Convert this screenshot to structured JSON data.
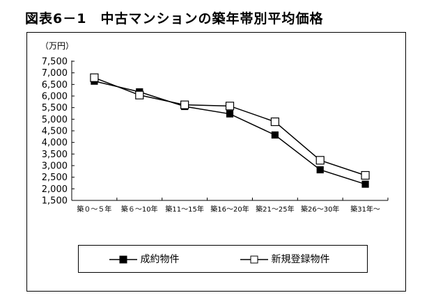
{
  "figure": {
    "title": "図表6－1　中古マンションの築年帯別平均価格"
  },
  "chart_data": {
    "type": "line",
    "unit_label": "（万円）",
    "categories": [
      "築０～５年",
      "築６～10年",
      "築11～15年",
      "築16～20年",
      "築21～25年",
      "築26～30年",
      "築31年～"
    ],
    "y_ticks": [
      "7,500",
      "7,000",
      "6,500",
      "6,000",
      "5,500",
      "5,000",
      "4,500",
      "4,000",
      "3,500",
      "3,000",
      "2,500",
      "2,000",
      "1,500"
    ],
    "ylim": [
      1500,
      7500
    ],
    "grid": false,
    "legend_position": "bottom",
    "series": [
      {
        "name": "成約物件",
        "marker": "filled-square",
        "values": [
          6640,
          6180,
          5550,
          5230,
          4320,
          2820,
          2200
        ]
      },
      {
        "name": "新規登録物件",
        "marker": "open-square",
        "values": [
          6790,
          6040,
          5620,
          5570,
          4890,
          3230,
          2580
        ]
      }
    ]
  }
}
